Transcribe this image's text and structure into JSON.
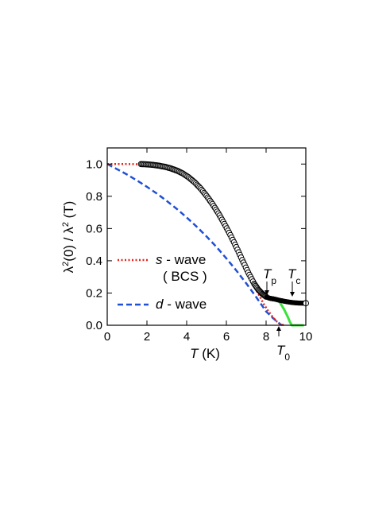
{
  "chart_data": {
    "type": "scatter",
    "xlabel": {
      "var": "T",
      "unit": " (K)"
    },
    "ylabel": {
      "lambda": "λ",
      "sup": "2",
      "zero": "(0) / ",
      "lambda2": "λ",
      "sup2": "2",
      "T": " (T)"
    },
    "xlim": [
      0,
      10
    ],
    "ylim": [
      0,
      1.1
    ],
    "xticks": [
      0,
      2,
      4,
      6,
      8,
      10
    ],
    "yticks": [
      0.0,
      0.2,
      0.4,
      0.6,
      0.8,
      1.0
    ],
    "xtick_labels": [
      "0",
      "2",
      "4",
      "6",
      "8",
      "10"
    ],
    "ytick_labels": [
      "0.0",
      "0.2",
      "0.4",
      "0.6",
      "0.8",
      "1.0"
    ],
    "grid": false,
    "colors": {
      "data": "#000000",
      "s_wave": "#e8231c",
      "d_wave": "#1f50d6",
      "green": "#3be13b"
    },
    "series": [
      {
        "name": "data",
        "style": "open-circles",
        "x": [
          1.7,
          2.0,
          2.3,
          2.6,
          2.9,
          3.2,
          3.5,
          3.8,
          4.1,
          4.4,
          4.7,
          5.0,
          5.3,
          5.6,
          5.9,
          6.2,
          6.5,
          6.8,
          7.1,
          7.4,
          7.6,
          7.8,
          8.0,
          8.1,
          8.2,
          8.3,
          8.4,
          8.6,
          8.8,
          9.0,
          9.2,
          9.4,
          9.6,
          9.8,
          10.0
        ],
        "y": [
          1.0,
          0.998,
          0.995,
          0.99,
          0.983,
          0.973,
          0.96,
          0.942,
          0.918,
          0.887,
          0.849,
          0.803,
          0.752,
          0.694,
          0.629,
          0.56,
          0.485,
          0.405,
          0.327,
          0.258,
          0.222,
          0.196,
          0.177,
          0.171,
          0.167,
          0.165,
          0.163,
          0.157,
          0.152,
          0.147,
          0.143,
          0.14,
          0.138,
          0.137,
          0.137
        ]
      },
      {
        "name": "s - wave (BCS)",
        "style": "dotted",
        "x": [
          0,
          1,
          2,
          2.5,
          3,
          3.5,
          4,
          4.5,
          5,
          5.5,
          6,
          6.5,
          7,
          7.5,
          7.9,
          8.1,
          8.3,
          8.5,
          8.7,
          8.9
        ],
        "y": [
          1.0,
          1.0,
          0.998,
          0.993,
          0.982,
          0.962,
          0.928,
          0.879,
          0.813,
          0.728,
          0.623,
          0.5,
          0.36,
          0.22,
          0.128,
          0.09,
          0.056,
          0.027,
          0.008,
          0.0
        ]
      },
      {
        "name": "d - wave",
        "style": "dashed",
        "x": [
          0,
          0.5,
          1,
          1.5,
          2,
          2.5,
          3,
          3.5,
          4,
          4.5,
          5,
          5.5,
          6,
          6.5,
          7,
          7.5,
          8,
          8.3,
          8.5,
          8.7,
          8.8
        ],
        "y": [
          1.0,
          0.968,
          0.935,
          0.898,
          0.859,
          0.817,
          0.771,
          0.722,
          0.669,
          0.612,
          0.551,
          0.486,
          0.415,
          0.34,
          0.26,
          0.175,
          0.086,
          0.05,
          0.028,
          0.008,
          0.0
        ]
      },
      {
        "name": "green",
        "style": "solid",
        "x": [
          8.55,
          8.7,
          8.9,
          9.1,
          9.2,
          9.3,
          9.6,
          9.9
        ],
        "y": [
          0.16,
          0.14,
          0.1,
          0.05,
          0.02,
          0.0,
          0.0,
          0.0
        ]
      }
    ],
    "legend": {
      "placement": "lower-left",
      "entries": [
        {
          "series": "s - wave (BCS)",
          "italic": "s",
          "rest": " - wave",
          "line2": "( BCS )"
        },
        {
          "series": "d - wave",
          "italic": "d",
          "rest": " - wave"
        }
      ]
    },
    "annotations": [
      {
        "main": "T",
        "sub": "p",
        "x": 8.05,
        "y": 0.17
      },
      {
        "main": "T",
        "sub": "c",
        "x": 9.35,
        "y": 0.15
      },
      {
        "main": "T",
        "sub": "0",
        "x": 8.6,
        "y": 0.0
      }
    ],
    "open_marker": {
      "x": 10.0,
      "y": 0.137
    }
  }
}
